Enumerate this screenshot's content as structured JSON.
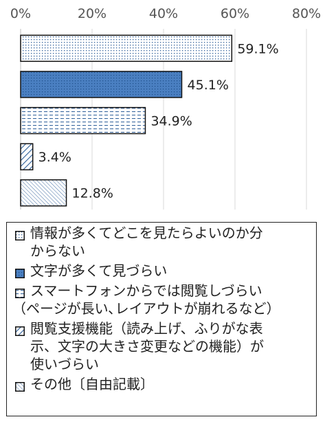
{
  "chart_data": {
    "type": "bar",
    "orientation": "horizontal",
    "x_ticks": [
      "0%",
      "20%",
      "40%",
      "60%",
      "80%"
    ],
    "xlim": [
      0,
      80
    ],
    "grid": true,
    "legend_position": "bottom",
    "categories": [
      "情報が多くてどこを見たらよいのか分からない",
      "文字が多くて見づらい",
      "スマートフォンからでは閲覧しづらい（ページが長い､レイアウトが崩れるなど）",
      "閲覧支援機能（読み上げ、ふりがな表示、文字の大きさ変更などの機能）が使いづらい",
      "その他〔自由記載〕"
    ],
    "values": [
      59.1,
      45.1,
      34.9,
      3.4,
      12.8
    ],
    "value_labels": [
      "59.1%",
      "45.1%",
      "34.9%",
      "3.4%",
      "12.8%"
    ]
  },
  "legend": {
    "items": [
      {
        "lines": [
          "情報が多くてどこを見たらよいのか分",
          "からない"
        ],
        "pattern": "dots"
      },
      {
        "lines": [
          "文字が多くて見づらい"
        ],
        "pattern": "blue-dots"
      },
      {
        "lines": [
          "スマートフォンからでは閲覧しづらい",
          "（ページが長い､レイアウトが崩れるなど）"
        ],
        "pattern": "dashes"
      },
      {
        "lines": [
          "閲覧支援機能（読み上げ、ふりがな表",
          "示、文字の大きさ変更などの機能）が",
          "使いづらい"
        ],
        "pattern": "diag-wide"
      },
      {
        "lines": [
          "その他〔自由記載〕"
        ],
        "pattern": "diag-fine"
      }
    ]
  },
  "colors": {
    "bar_outline": "#111111",
    "blue_fill": "#4a7fc1",
    "pattern_ink": "#2e5f9a",
    "grid": "#d9d9d9"
  }
}
